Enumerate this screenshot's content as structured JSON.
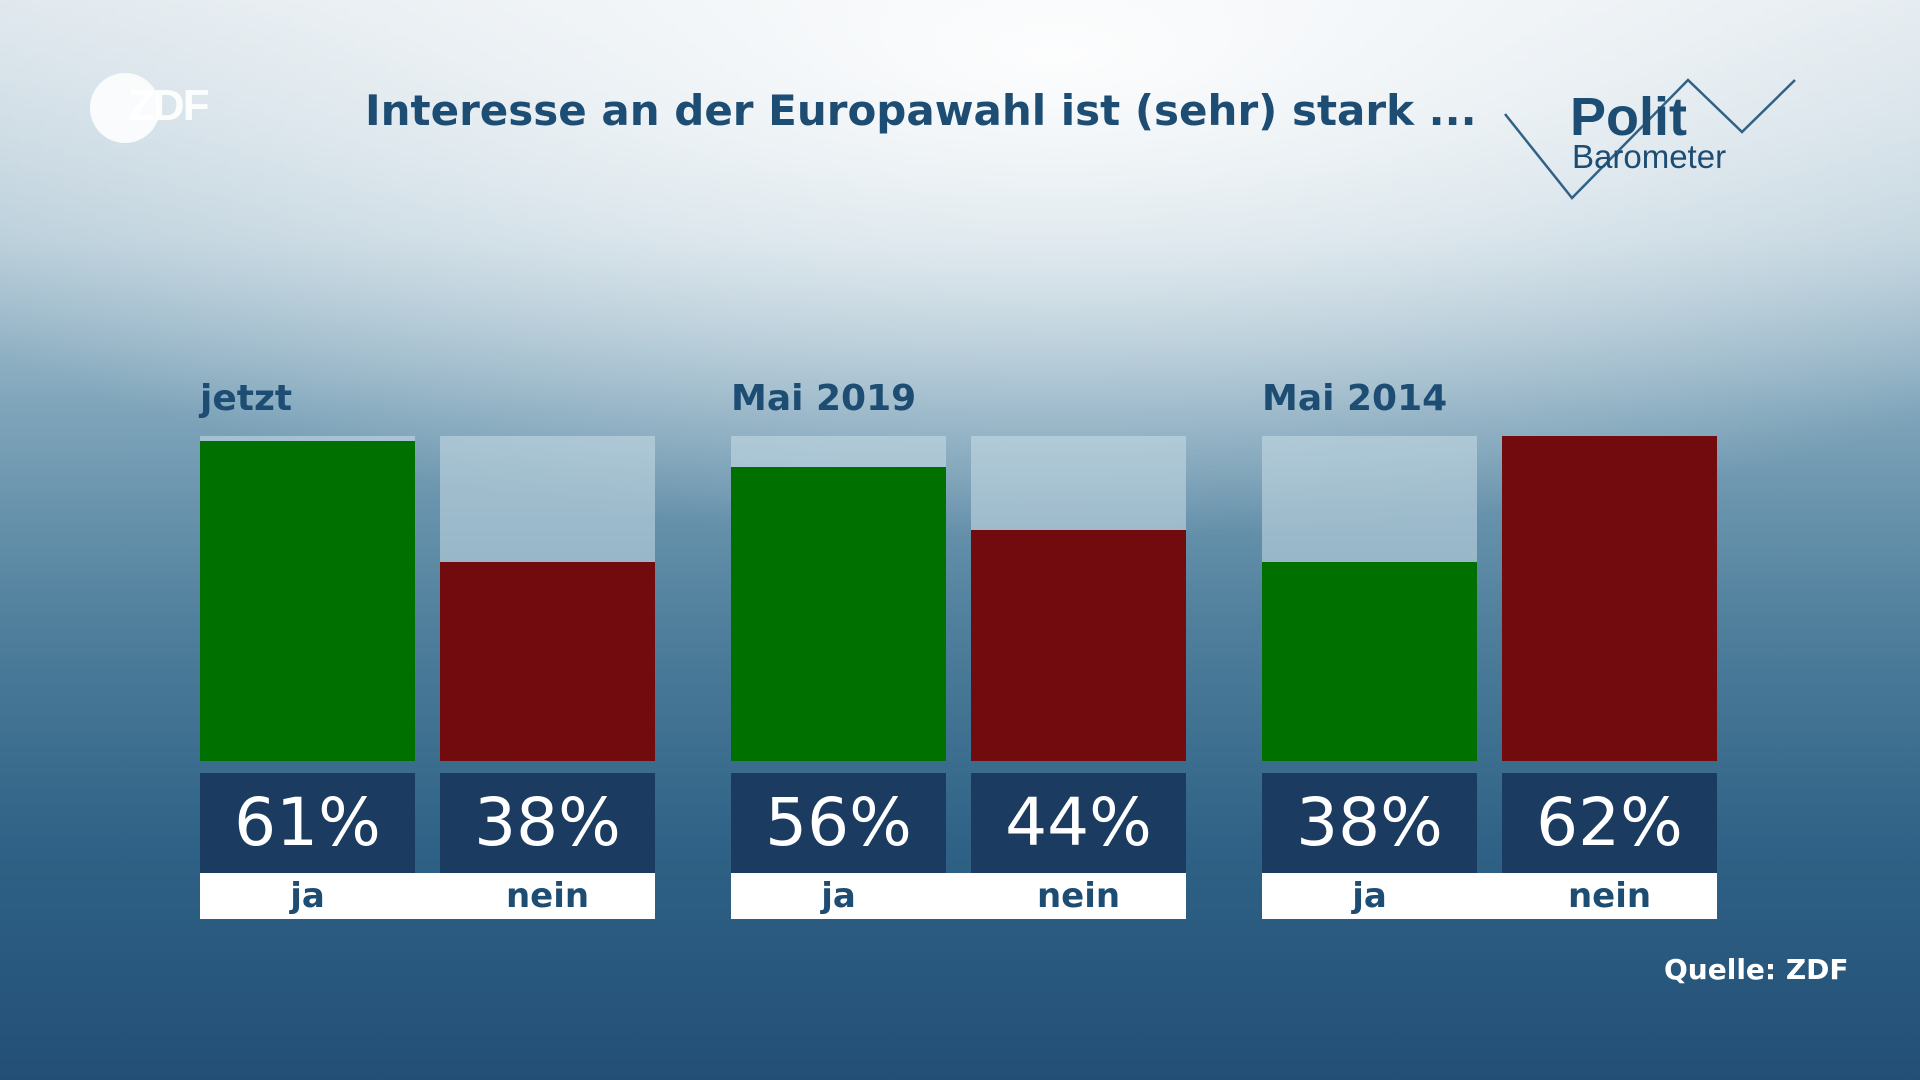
{
  "title": "Interesse an der Europawahl ist (sehr) stark ...",
  "logo": {
    "text": "ZDF"
  },
  "brand": {
    "line1": "Polit",
    "line2": "Barometer"
  },
  "source": "Quelle: ZDF",
  "colors": {
    "ja": "#007000",
    "nein": "#720b0d",
    "value_box": "#1b3c60",
    "text": "#1e4d74"
  },
  "chart_data": {
    "type": "bar",
    "ylim": [
      0,
      62
    ],
    "groups": [
      {
        "label": "jetzt",
        "bars": [
          {
            "category": "ja",
            "value": 61,
            "display": "61%"
          },
          {
            "category": "nein",
            "value": 38,
            "display": "38%"
          }
        ]
      },
      {
        "label": "Mai 2019",
        "bars": [
          {
            "category": "ja",
            "value": 56,
            "display": "56%"
          },
          {
            "category": "nein",
            "value": 44,
            "display": "44%"
          }
        ]
      },
      {
        "label": "Mai 2014",
        "bars": [
          {
            "category": "ja",
            "value": 38,
            "display": "38%"
          },
          {
            "category": "nein",
            "value": 62,
            "display": "62%"
          }
        ]
      }
    ]
  }
}
